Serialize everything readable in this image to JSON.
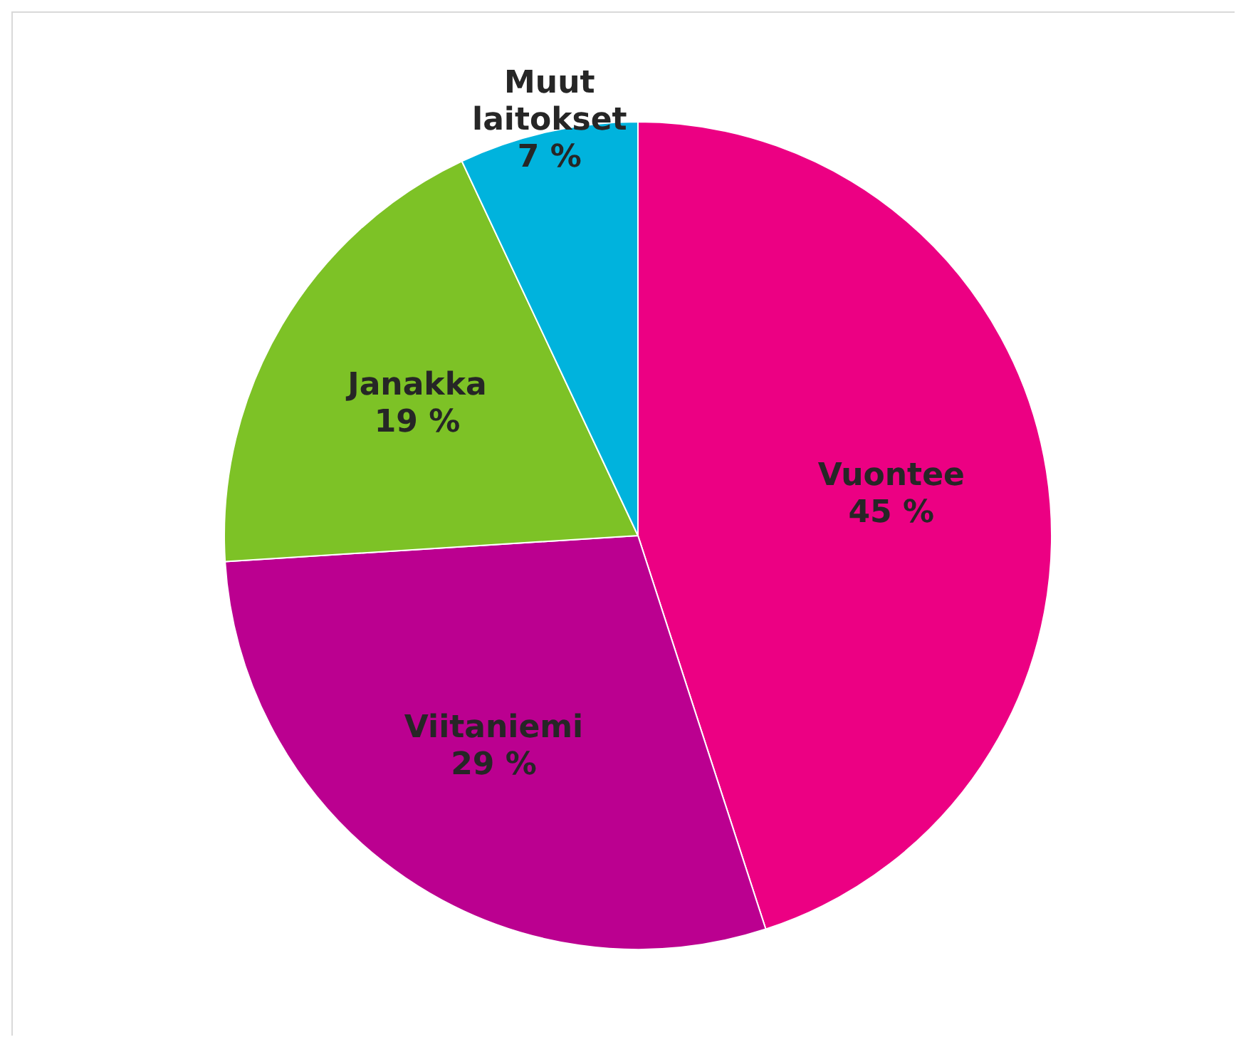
{
  "chart_data": {
    "type": "pie",
    "categories": [
      "Vuontee",
      "Viitaniemi",
      "Janakka",
      "Muut laitokset"
    ],
    "values": [
      45,
      29,
      19,
      7
    ],
    "colors": [
      "#ec0083",
      "#bb0090",
      "#7dc226",
      "#00b3dd"
    ],
    "value_labels": [
      "45 %",
      "29 %",
      "19 %",
      "7 %"
    ],
    "legend": false
  }
}
